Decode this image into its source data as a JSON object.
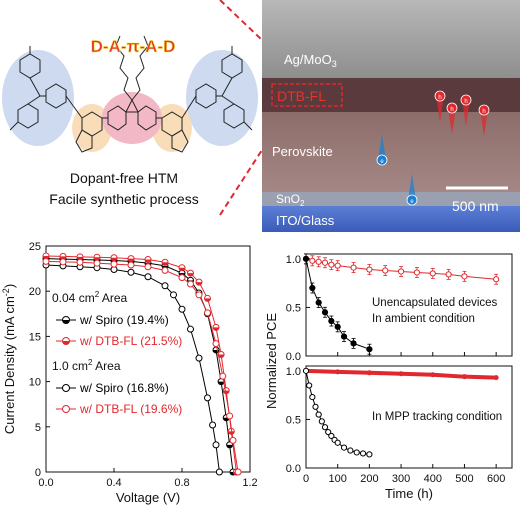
{
  "structure": {
    "title": "D-A-π-A-D",
    "caption_line1": "Dopant-free HTM",
    "caption_line2": "Facile synthetic process"
  },
  "sem": {
    "layer_top": "Ag/MoO",
    "layer_top_sub": "3",
    "layer_htm": "DTB-FL",
    "layer_perovskite": "Perovskite",
    "layer_etl": "SnO",
    "layer_etl_sub": "2",
    "layer_substrate": "ITO/Glass",
    "scale_label": "500 nm",
    "particles": [
      {
        "label": "e",
        "kind": "electron"
      },
      {
        "label": "e",
        "kind": "electron"
      },
      {
        "label": "h",
        "kind": "hole"
      },
      {
        "label": "h",
        "kind": "hole"
      },
      {
        "label": "h",
        "kind": "hole"
      },
      {
        "label": "h",
        "kind": "hole"
      }
    ],
    "colors": {
      "hole": "#e0282e",
      "electron": "#1f7fd0",
      "htm_box": "#e0282e"
    }
  },
  "chart_data": [
    {
      "type": "line",
      "xlabel": "Voltage (V)",
      "ylabel": "Current Density (mA cm",
      "ylabel_sup": "-2",
      "ylabel_end": ")",
      "xlim": [
        0.0,
        1.2
      ],
      "ylim": [
        0,
        25
      ],
      "xticks": [
        "0.0",
        "0.4",
        "0.8",
        "1.2"
      ],
      "yticks": [
        "0",
        "5",
        "10",
        "15",
        "20",
        "25"
      ],
      "group_labels": [
        {
          "text": "0.04 cm",
          "sup": "2",
          "end": " Area"
        },
        {
          "text": "1.0  cm",
          "sup": "2",
          "end": " Area"
        }
      ],
      "series": [
        {
          "name": "w/ Spiro (19.4%)",
          "color": "#000000",
          "marker": "half-filled",
          "group": 0,
          "x": [
            0,
            0.1,
            0.2,
            0.3,
            0.4,
            0.5,
            0.6,
            0.7,
            0.8,
            0.85,
            0.9,
            0.95,
            1.0,
            1.03,
            1.06,
            1.08,
            1.1
          ],
          "y": [
            23.6,
            23.55,
            23.5,
            23.45,
            23.4,
            23.3,
            23.1,
            22.8,
            22.0,
            21.2,
            19.8,
            17.5,
            13.5,
            10.0,
            6.0,
            3.0,
            0
          ]
        },
        {
          "name": "w/ DTB-FL (21.5%)",
          "color": "#e0282e",
          "marker": "half-filled",
          "group": 0,
          "x": [
            0,
            0.1,
            0.2,
            0.3,
            0.4,
            0.5,
            0.6,
            0.7,
            0.8,
            0.85,
            0.9,
            0.95,
            1.0,
            1.03,
            1.06,
            1.09,
            1.12
          ],
          "y": [
            23.9,
            23.85,
            23.8,
            23.75,
            23.7,
            23.6,
            23.5,
            23.2,
            22.6,
            22.0,
            21.0,
            19.2,
            16.0,
            13.0,
            9.0,
            4.5,
            0
          ]
        },
        {
          "name": "w/ Spiro (16.8%)",
          "color": "#000000",
          "marker": "open",
          "group": 1,
          "x": [
            0,
            0.1,
            0.2,
            0.3,
            0.4,
            0.5,
            0.6,
            0.7,
            0.75,
            0.8,
            0.85,
            0.9,
            0.95,
            0.98,
            1.0,
            1.02
          ],
          "y": [
            22.9,
            22.8,
            22.7,
            22.6,
            22.4,
            22.1,
            21.6,
            20.6,
            19.6,
            18.0,
            15.8,
            12.6,
            8.2,
            5.2,
            3.0,
            0
          ]
        },
        {
          "name": "w/ DTB-FL (19.6%)",
          "color": "#e0282e",
          "marker": "open",
          "group": 1,
          "x": [
            0,
            0.1,
            0.2,
            0.3,
            0.4,
            0.5,
            0.6,
            0.7,
            0.8,
            0.85,
            0.9,
            0.95,
            1.0,
            1.04,
            1.08,
            1.1,
            1.13
          ],
          "y": [
            23.3,
            23.25,
            23.2,
            23.1,
            23.0,
            22.9,
            22.7,
            22.3,
            21.5,
            20.8,
            19.6,
            17.6,
            14.2,
            10.6,
            6.2,
            3.5,
            0
          ]
        }
      ]
    },
    {
      "type": "line",
      "xlabel": "Time (h)",
      "ylabel": "Normalized PCE",
      "xlim": [
        0,
        650
      ],
      "xticks": [
        "0",
        "100",
        "200",
        "300",
        "400",
        "500",
        "600"
      ],
      "panels": [
        {
          "annotation_line1": "Unencapsulated devices",
          "annotation_line2": "In ambient condition",
          "ylim": [
            0.0,
            1.05
          ],
          "yticks": [
            "0.0",
            "0.5",
            "1.0"
          ],
          "series": [
            {
              "color": "#e0282e",
              "marker": "open",
              "errorbars": true,
              "x": [
                0,
                20,
                40,
                60,
                80,
                100,
                150,
                200,
                250,
                300,
                350,
                400,
                450,
                500,
                600
              ],
              "y": [
                1.0,
                0.98,
                0.97,
                0.96,
                0.94,
                0.93,
                0.91,
                0.89,
                0.88,
                0.87,
                0.86,
                0.85,
                0.84,
                0.82,
                0.79
              ]
            },
            {
              "color": "#000000",
              "marker": "filled",
              "errorbars": true,
              "x": [
                0,
                20,
                40,
                60,
                80,
                100,
                120,
                150,
                200
              ],
              "y": [
                1.0,
                0.7,
                0.55,
                0.45,
                0.36,
                0.3,
                0.2,
                0.13,
                0.07
              ]
            }
          ]
        },
        {
          "annotation_line1": "In MPP tracking condition",
          "ylim": [
            0.0,
            1.05
          ],
          "yticks": [
            "0.0",
            "0.5",
            "1.0"
          ],
          "series": [
            {
              "color": "#e0282e",
              "marker": "filled",
              "x": [
                0,
                100,
                200,
                300,
                400,
                500,
                600
              ],
              "y": [
                1.0,
                0.99,
                0.98,
                0.97,
                0.96,
                0.94,
                0.93
              ]
            },
            {
              "color": "#000000",
              "marker": "open",
              "x": [
                0,
                10,
                20,
                30,
                40,
                50,
                60,
                70,
                80,
                90,
                100,
                120,
                140,
                160,
                180,
                200
              ],
              "y": [
                1.0,
                0.85,
                0.73,
                0.63,
                0.55,
                0.48,
                0.42,
                0.37,
                0.33,
                0.29,
                0.26,
                0.21,
                0.18,
                0.16,
                0.15,
                0.14
              ]
            }
          ]
        }
      ]
    }
  ]
}
